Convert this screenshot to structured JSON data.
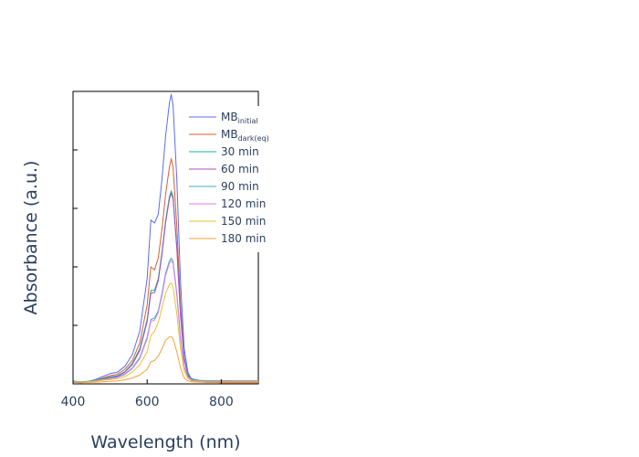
{
  "chart_data": {
    "type": "line",
    "xlabel": "Wavelength (nm)",
    "ylabel": "Absorbance (a.u.)",
    "xlim": [
      400,
      900
    ],
    "ylim": [
      0,
      1.0
    ],
    "x_ticks": [
      400,
      600,
      800
    ],
    "show_y_tick_labels": false,
    "grid": false,
    "legend": {
      "placement": "top-right"
    },
    "spectrum_x": [
      400,
      420,
      440,
      460,
      480,
      500,
      520,
      540,
      560,
      580,
      600,
      610,
      620,
      630,
      640,
      650,
      660,
      665,
      670,
      680,
      690,
      700,
      710,
      720,
      740,
      760,
      780,
      800,
      850,
      900
    ],
    "series": [
      {
        "name_main": "MB",
        "name_sub": "initial",
        "color": "#5b6cf0",
        "values": [
          0.01,
          0.006,
          0.008,
          0.015,
          0.025,
          0.035,
          0.04,
          0.06,
          0.1,
          0.18,
          0.36,
          0.56,
          0.55,
          0.58,
          0.7,
          0.85,
          0.96,
          0.99,
          0.95,
          0.7,
          0.35,
          0.12,
          0.04,
          0.015,
          0.008,
          0.006,
          0.006,
          0.005,
          0.005,
          0.005
        ]
      },
      {
        "name_main": "MB",
        "name_sub": "dark(eq)",
        "color": "#d95f2f",
        "values": [
          0.006,
          0.004,
          0.006,
          0.012,
          0.02,
          0.028,
          0.033,
          0.05,
          0.08,
          0.14,
          0.27,
          0.4,
          0.39,
          0.43,
          0.53,
          0.65,
          0.74,
          0.77,
          0.74,
          0.54,
          0.27,
          0.09,
          0.03,
          0.012,
          0.007,
          0.005,
          0.005,
          0.004,
          0.004,
          0.004
        ]
      },
      {
        "name_main": "30 min",
        "color": "#1bb394",
        "values": [
          0.008,
          0.007,
          0.009,
          0.012,
          0.018,
          0.024,
          0.028,
          0.042,
          0.07,
          0.12,
          0.22,
          0.32,
          0.32,
          0.36,
          0.45,
          0.56,
          0.64,
          0.66,
          0.64,
          0.47,
          0.24,
          0.09,
          0.035,
          0.018,
          0.012,
          0.011,
          0.011,
          0.011,
          0.01,
          0.01
        ]
      },
      {
        "name_main": "60 min",
        "color": "#a74fc2",
        "values": [
          0.006,
          0.005,
          0.007,
          0.01,
          0.016,
          0.022,
          0.026,
          0.04,
          0.066,
          0.114,
          0.212,
          0.31,
          0.312,
          0.352,
          0.442,
          0.552,
          0.632,
          0.652,
          0.632,
          0.462,
          0.232,
          0.085,
          0.03,
          0.015,
          0.01,
          0.009,
          0.009,
          0.009,
          0.008,
          0.008
        ]
      },
      {
        "name_main": "90 min",
        "color": "#3bb1c9",
        "values": [
          0.008,
          0.007,
          0.008,
          0.011,
          0.015,
          0.02,
          0.024,
          0.034,
          0.055,
          0.09,
          0.16,
          0.22,
          0.225,
          0.25,
          0.31,
          0.38,
          0.42,
          0.43,
          0.42,
          0.31,
          0.16,
          0.06,
          0.025,
          0.014,
          0.011,
          0.01,
          0.01,
          0.01,
          0.01,
          0.01
        ]
      },
      {
        "name_main": "120 min",
        "color": "#e07de6",
        "values": [
          0.007,
          0.006,
          0.007,
          0.01,
          0.014,
          0.018,
          0.022,
          0.032,
          0.052,
          0.086,
          0.154,
          0.214,
          0.218,
          0.244,
          0.302,
          0.372,
          0.412,
          0.422,
          0.412,
          0.302,
          0.154,
          0.058,
          0.023,
          0.013,
          0.01,
          0.009,
          0.009,
          0.009,
          0.009,
          0.009
        ]
      },
      {
        "name_main": "150 min",
        "color": "#e8c22e",
        "values": [
          0.006,
          0.006,
          0.007,
          0.009,
          0.012,
          0.015,
          0.018,
          0.025,
          0.04,
          0.065,
          0.11,
          0.165,
          0.18,
          0.21,
          0.26,
          0.31,
          0.34,
          0.345,
          0.33,
          0.24,
          0.12,
          0.045,
          0.018,
          0.01,
          0.008,
          0.007,
          0.007,
          0.007,
          0.007,
          0.007
        ]
      },
      {
        "name_main": "180 min",
        "color": "#f2a33a",
        "values": [
          0.005,
          0.005,
          0.005,
          0.006,
          0.007,
          0.009,
          0.01,
          0.014,
          0.02,
          0.03,
          0.05,
          0.075,
          0.08,
          0.095,
          0.12,
          0.15,
          0.16,
          0.162,
          0.155,
          0.11,
          0.055,
          0.02,
          0.01,
          0.007,
          0.006,
          0.006,
          0.006,
          0.006,
          0.006,
          0.006
        ]
      }
    ]
  }
}
